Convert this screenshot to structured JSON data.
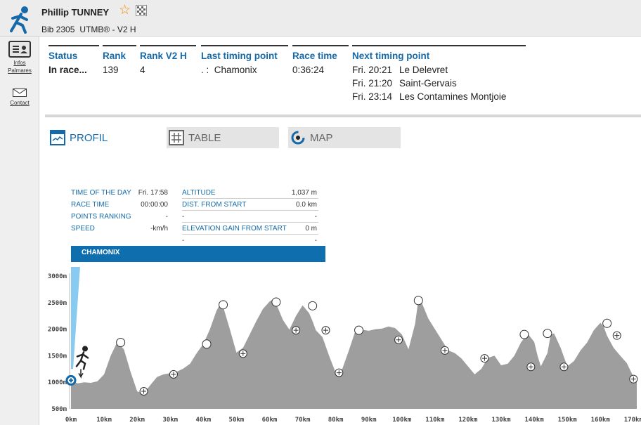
{
  "header": {
    "name": "Phillip TUNNEY",
    "bib": "Bib 2305",
    "race": "UTMB® - V2 H",
    "accent": "#1569a8"
  },
  "sidebar": {
    "items": [
      {
        "label_line1": "Infos",
        "label_line2": "Palmares",
        "icon": "id-card-icon"
      },
      {
        "label": "Contact",
        "icon": "envelope-icon"
      }
    ]
  },
  "status": {
    "status_label": "Status",
    "status_value": "In race...",
    "rank_label": "Rank",
    "rank_value": "139",
    "rank_cat_label": "Rank V2 H",
    "rank_cat_value": "4",
    "last_label": "Last timing point",
    "last_value": ". :  Chamonix",
    "race_time_label": "Race time",
    "race_time_value": "0:36:24",
    "next_label": "Next timing point",
    "next_points": [
      {
        "time": "Fri. 20:21",
        "place": "Le Delevret"
      },
      {
        "time": "Fri. 21:20",
        "place": "Saint-Gervais"
      },
      {
        "time": "Fri. 23:14",
        "place": "Les Contamines Montjoie"
      }
    ]
  },
  "tabs": {
    "profil": "PROFIL",
    "table": "TABLE",
    "map": "MAP"
  },
  "info_panel": {
    "time_of_day_label": "TIME OF THE DAY",
    "time_of_day_value": "Fri. 17:58",
    "race_time_label": "RACE TIME",
    "race_time_value": "00:00:00",
    "points_ranking_label": "POINTS RANKING",
    "points_ranking_value": "-",
    "speed_label": "SPEED",
    "speed_value": "-km/h",
    "altitude_label": "ALTITUDE",
    "altitude_value": "1,037 m",
    "dist_label": "DIST. FROM START",
    "dist_value": "0.0 km",
    "blank1_label": "-",
    "blank1_value": "-",
    "elev_gain_label": "ELEVATION GAIN FROM START",
    "elev_gain_value": "0 m",
    "blank2_label": "-",
    "blank2_value": "-",
    "location": "CHAMONIX"
  },
  "chart_data": {
    "type": "area",
    "title": "",
    "xlabel": "",
    "ylabel": "",
    "xlim": [
      0,
      171
    ],
    "ylim": [
      500,
      3000
    ],
    "x_ticks": [
      "0km",
      "10km",
      "20km",
      "30km",
      "40km",
      "50km",
      "60km",
      "70km",
      "80km",
      "90km",
      "100km",
      "110km",
      "120km",
      "130km",
      "140km",
      "150km",
      "160km",
      "170km"
    ],
    "y_ticks": [
      "3000m",
      "2500m",
      "2000m",
      "1500m",
      "1000m",
      "500m"
    ],
    "fill_color": "#9e9e9e",
    "x": [
      0,
      2,
      4,
      6,
      8,
      10,
      12,
      14,
      16,
      18,
      20,
      22,
      24,
      26,
      28,
      30,
      32,
      34,
      36,
      38,
      40,
      42,
      44,
      45,
      46,
      48,
      50,
      52,
      54,
      56,
      58,
      60,
      61,
      62,
      64,
      66,
      68,
      70,
      72,
      73,
      74,
      76,
      78,
      80,
      82,
      84,
      86,
      88,
      90,
      92,
      94,
      96,
      98,
      100,
      102,
      104,
      105,
      106,
      108,
      110,
      112,
      114,
      116,
      118,
      120,
      122,
      124,
      126,
      128,
      130,
      132,
      134,
      136,
      138,
      140,
      141,
      142,
      144,
      145,
      146,
      148,
      150,
      152,
      154,
      156,
      158,
      160,
      161,
      162,
      164,
      166,
      168,
      170,
      171
    ],
    "y": [
      1037,
      980,
      1000,
      990,
      1020,
      1150,
      1500,
      1760,
      1620,
      1200,
      830,
      790,
      950,
      1100,
      1150,
      1170,
      1200,
      1260,
      1350,
      1550,
      1720,
      2000,
      2350,
      2460,
      2420,
      2000,
      1560,
      1650,
      1900,
      2150,
      2380,
      2520,
      2560,
      2480,
      2180,
      1990,
      2250,
      2450,
      2300,
      2150,
      1980,
      1850,
      1500,
      1180,
      1250,
      1600,
      1980,
      1990,
      1970,
      2000,
      2010,
      2050,
      2020,
      1900,
      1620,
      2100,
      2560,
      2500,
      2200,
      2000,
      1800,
      1600,
      1550,
      1450,
      1300,
      1150,
      1250,
      1460,
      1500,
      1320,
      1350,
      1500,
      1750,
      1920,
      1760,
      1500,
      1300,
      1550,
      1900,
      1920,
      1650,
      1300,
      1400,
      1600,
      1750,
      1980,
      2120,
      2050,
      1880,
      1650,
      1500,
      1360,
      1100,
      1050
    ],
    "checkpoints": [
      {
        "km": 0,
        "alt": 1037,
        "symbol": "start"
      },
      {
        "km": 15,
        "alt": 1750,
        "symbol": "circle"
      },
      {
        "km": 22,
        "alt": 830,
        "symbol": "plus"
      },
      {
        "km": 31,
        "alt": 1150,
        "symbol": "plus"
      },
      {
        "km": 41,
        "alt": 1720,
        "symbol": "circle"
      },
      {
        "km": 46,
        "alt": 2460,
        "symbol": "circle"
      },
      {
        "km": 52,
        "alt": 1540,
        "symbol": "plus"
      },
      {
        "km": 62,
        "alt": 2510,
        "symbol": "circle"
      },
      {
        "km": 68,
        "alt": 1980,
        "symbol": "plus"
      },
      {
        "km": 73,
        "alt": 2440,
        "symbol": "circle"
      },
      {
        "km": 77,
        "alt": 1980,
        "symbol": "plus"
      },
      {
        "km": 81,
        "alt": 1180,
        "symbol": "plus"
      },
      {
        "km": 87,
        "alt": 1980,
        "symbol": "circle"
      },
      {
        "km": 99,
        "alt": 1800,
        "symbol": "plus"
      },
      {
        "km": 105,
        "alt": 2540,
        "symbol": "circle"
      },
      {
        "km": 113,
        "alt": 1600,
        "symbol": "plus"
      },
      {
        "km": 125,
        "alt": 1450,
        "symbol": "plus"
      },
      {
        "km": 137,
        "alt": 1900,
        "symbol": "circle"
      },
      {
        "km": 139,
        "alt": 1290,
        "symbol": "plus"
      },
      {
        "km": 144,
        "alt": 1920,
        "symbol": "circle"
      },
      {
        "km": 149,
        "alt": 1290,
        "symbol": "plus"
      },
      {
        "km": 162,
        "alt": 2110,
        "symbol": "circle"
      },
      {
        "km": 165,
        "alt": 1880,
        "symbol": "plus"
      },
      {
        "km": 170,
        "alt": 1060,
        "symbol": "plus"
      }
    ]
  }
}
